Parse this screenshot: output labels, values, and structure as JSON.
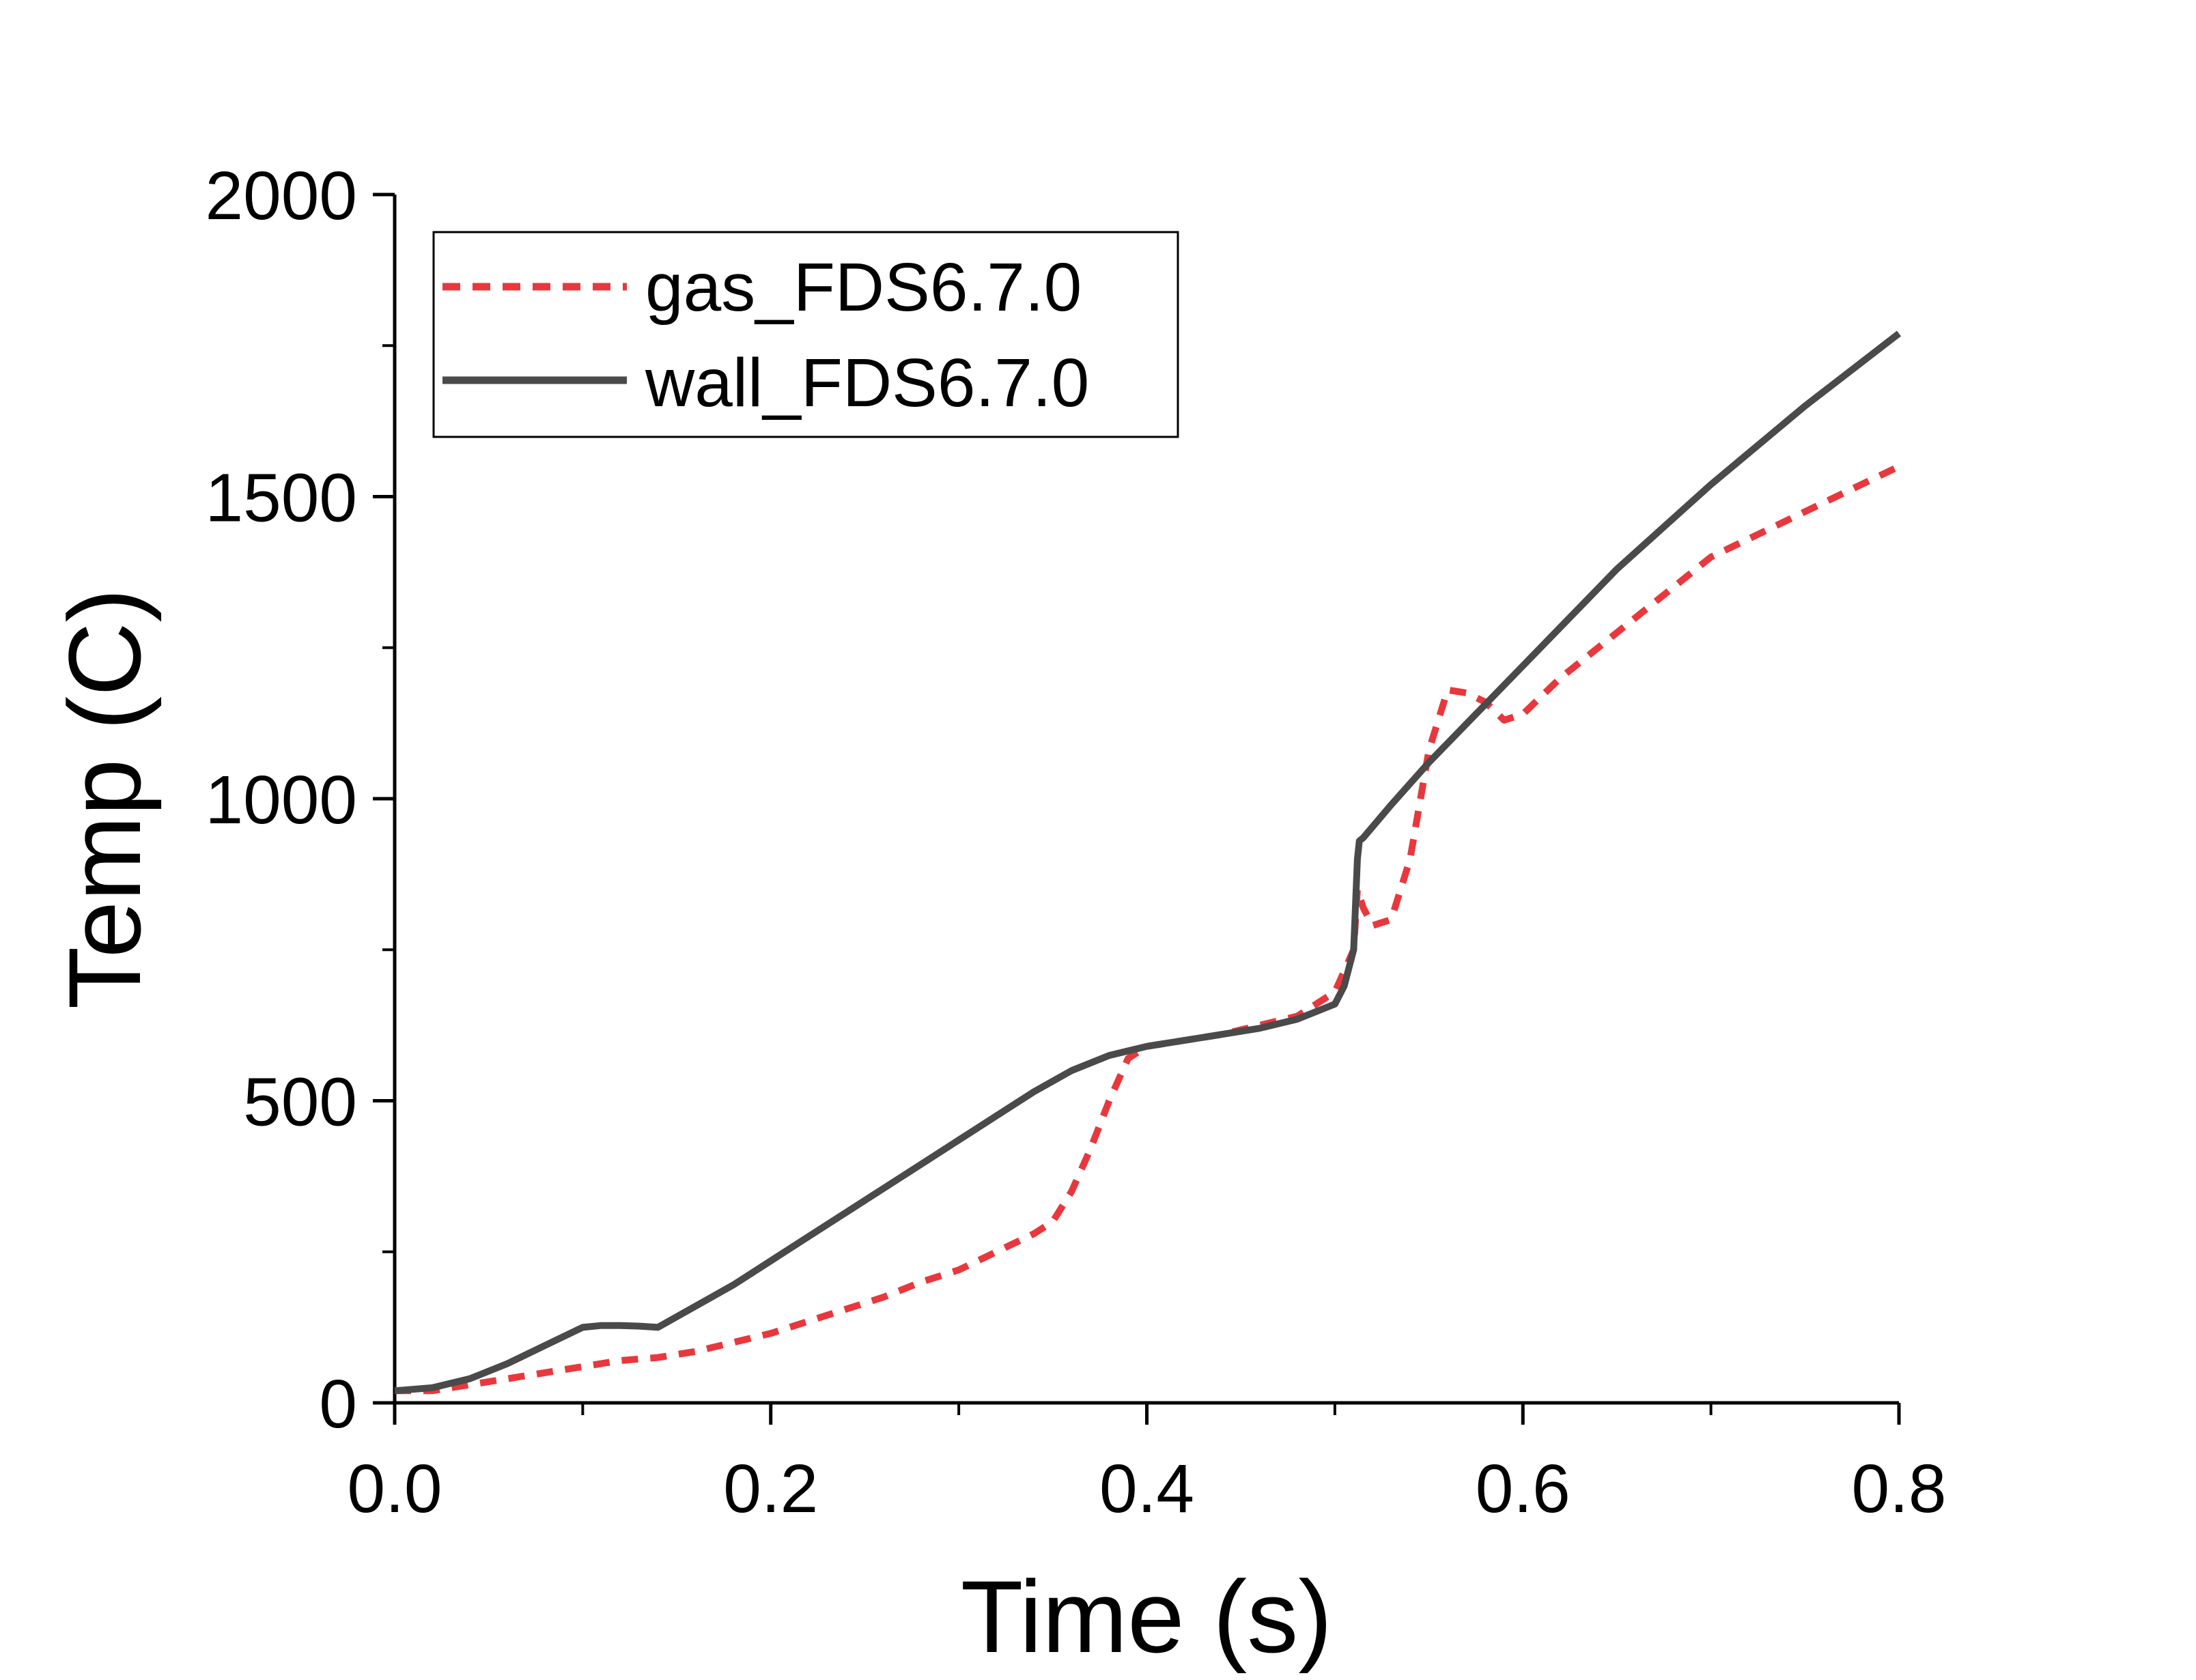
{
  "chart_data": {
    "type": "line",
    "title": "",
    "xlabel": "Time (s)",
    "ylabel": "Temp (C)",
    "xlim": [
      0.0,
      0.8
    ],
    "ylim": [
      0,
      2000
    ],
    "x_ticks": [
      "0.0",
      "0.2",
      "0.4",
      "0.6",
      "0.8"
    ],
    "y_ticks": [
      "0",
      "500",
      "1000",
      "1500",
      "2000"
    ],
    "legend_position": "top-left",
    "grid": false,
    "series": [
      {
        "name": "gas_FDS6.7.0",
        "color": "#e8383d",
        "style": "dashed",
        "x": [
          0.0,
          0.02,
          0.04,
          0.06,
          0.08,
          0.1,
          0.12,
          0.14,
          0.16,
          0.18,
          0.2,
          0.22,
          0.24,
          0.26,
          0.28,
          0.3,
          0.32,
          0.34,
          0.35,
          0.36,
          0.37,
          0.38,
          0.39,
          0.4,
          0.42,
          0.44,
          0.46,
          0.48,
          0.5,
          0.51,
          0.512,
          0.515,
          0.52,
          0.53,
          0.54,
          0.55,
          0.56,
          0.57,
          0.58,
          0.59,
          0.6,
          0.62,
          0.64,
          0.66,
          0.68,
          0.7,
          0.72,
          0.74,
          0.76,
          0.78,
          0.8
        ],
        "y": [
          20,
          20,
          30,
          40,
          50,
          60,
          70,
          75,
          85,
          100,
          115,
          135,
          155,
          175,
          200,
          220,
          250,
          280,
          300,
          350,
          420,
          500,
          570,
          590,
          600,
          610,
          625,
          640,
          680,
          750,
          850,
          820,
          790,
          800,
          900,
          1080,
          1180,
          1175,
          1160,
          1130,
          1140,
          1200,
          1250,
          1300,
          1350,
          1400,
          1430,
          1460,
          1490,
          1520,
          1550
        ]
      },
      {
        "name": "wall_FDS6.7.0",
        "color": "#4a4a4a",
        "style": "solid",
        "x": [
          0.0,
          0.02,
          0.04,
          0.06,
          0.08,
          0.1,
          0.11,
          0.12,
          0.13,
          0.14,
          0.16,
          0.18,
          0.2,
          0.22,
          0.24,
          0.26,
          0.28,
          0.3,
          0.32,
          0.34,
          0.36,
          0.38,
          0.4,
          0.42,
          0.44,
          0.46,
          0.48,
          0.5,
          0.505,
          0.51,
          0.512,
          0.513,
          0.515,
          0.53,
          0.55,
          0.6,
          0.65,
          0.7,
          0.75,
          0.8
        ],
        "y": [
          20,
          25,
          40,
          65,
          95,
          125,
          128,
          128,
          127,
          125,
          160,
          195,
          235,
          275,
          315,
          355,
          395,
          435,
          475,
          515,
          550,
          575,
          590,
          600,
          610,
          620,
          635,
          660,
          690,
          750,
          900,
          930,
          935,
          990,
          1060,
          1220,
          1380,
          1520,
          1650,
          1770
        ]
      }
    ]
  }
}
